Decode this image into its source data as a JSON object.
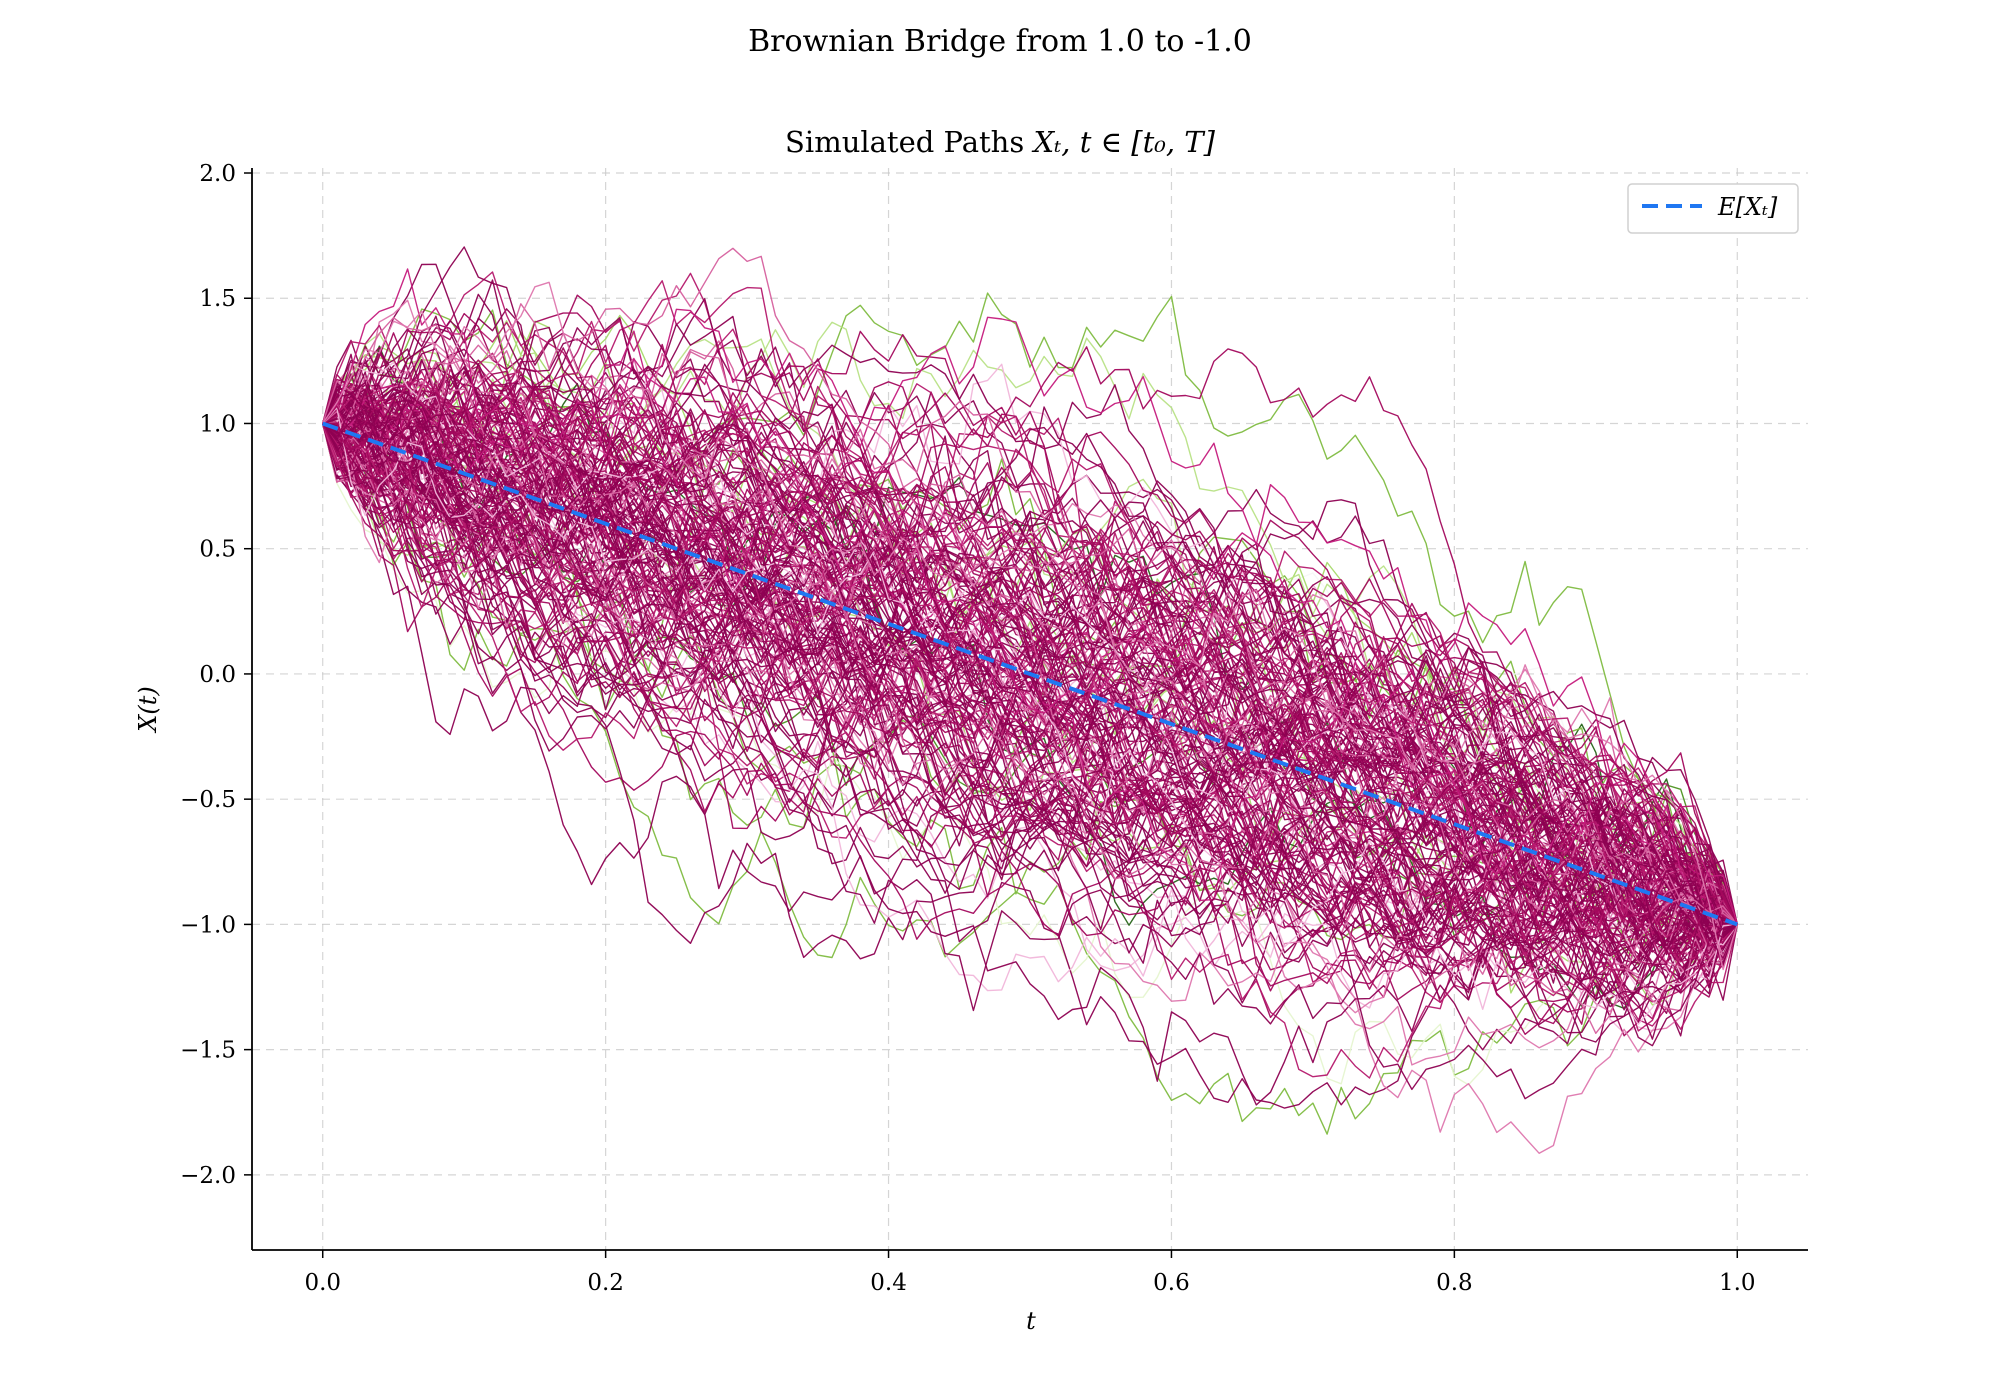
{
  "chart_data": {
    "type": "line",
    "suptitle": "Brownian Bridge from 1.0 to -1.0",
    "title": "Simulated Paths X_t, t ∈ [t_0, T]",
    "title_text": "Simulated Paths ",
    "title_math": "Xₜ, t ∈ [t₀, T]",
    "xlabel": "t",
    "ylabel": "X(t)",
    "xlim": [
      -0.05,
      1.05
    ],
    "ylim": [
      -2.3,
      2.02
    ],
    "xticks": [
      0.0,
      0.2,
      0.4,
      0.6,
      0.8,
      1.0
    ],
    "xtick_labels": [
      "0.0",
      "0.2",
      "0.4",
      "0.6",
      "0.8",
      "1.0"
    ],
    "yticks": [
      2.0,
      1.5,
      1.0,
      0.5,
      0.0,
      -0.5,
      -1.0,
      -1.5,
      -2.0
    ],
    "ytick_labels": [
      "2.0",
      "1.5",
      "1.0",
      "0.5",
      "0.0",
      "−0.5",
      "−1.0",
      "−1.5",
      "−2.0"
    ],
    "grid": true,
    "legend_position": "top-right",
    "legend": [
      {
        "label": "E[Xₜ]",
        "color": "#1f77f2",
        "style": "dashed"
      }
    ],
    "start_value": 1.0,
    "end_value": -1.0,
    "t_start": 0.0,
    "t_end": 1.0,
    "mean_path": {
      "name": "E[Xₜ]",
      "x": [
        0.0,
        1.0
      ],
      "y": [
        1.0,
        -1.0
      ],
      "color": "#1f77f2"
    },
    "simulated_paths": {
      "count": 200,
      "steps": 100,
      "colormap": "PiYG",
      "seed": 7
    },
    "notable_extremes": {
      "max_value": 1.8,
      "max_t": 0.2,
      "min_value": -2.15,
      "min_t": 0.88
    },
    "colors": {
      "primary": "#8e0152",
      "accent_green": "#4d9221",
      "mean": "#1f77f2"
    }
  }
}
